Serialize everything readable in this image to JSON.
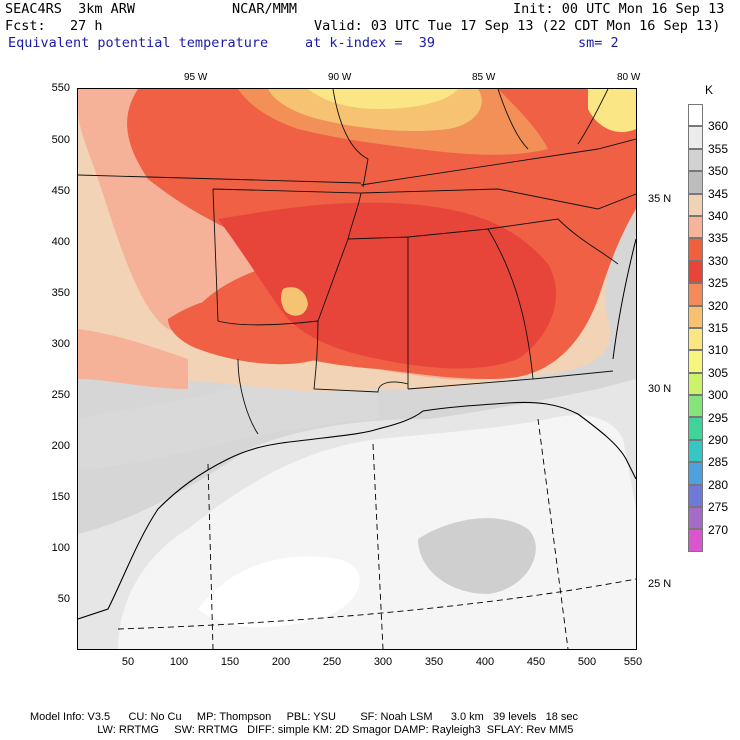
{
  "header": {
    "model": "SEAC4RS  3km ARW",
    "org": "NCAR/MMM",
    "init": "Init: 00 UTC Mon 16 Sep 13",
    "fcst": "Fcst:   27 h",
    "valid": "Valid: 03 UTC Tue 17 Sep 13 (22 CDT Mon 16 Sep 13)",
    "field": "Equivalent potential temperature",
    "level": "at k-index =  39",
    "smooth": "sm= 2"
  },
  "map": {
    "lon_labels": [
      "95 W",
      "90 W",
      "85 W",
      "80 W"
    ],
    "lat_labels": [
      "35 N",
      "30 N",
      "25 N"
    ],
    "y_ticks": [
      "550",
      "500",
      "450",
      "400",
      "350",
      "300",
      "250",
      "200",
      "150",
      "100",
      "50"
    ],
    "x_ticks": [
      "50",
      "100",
      "150",
      "200",
      "250",
      "300",
      "350",
      "400",
      "450",
      "500",
      "550"
    ]
  },
  "colorbar": {
    "unit": "K",
    "labels": [
      "360",
      "355",
      "350",
      "345",
      "340",
      "335",
      "330",
      "325",
      "320",
      "315",
      "310",
      "305",
      "300",
      "295",
      "290",
      "285",
      "280",
      "275",
      "270"
    ],
    "colors": [
      "#ffffff",
      "#ececec",
      "#d2d2d2",
      "#bdbdbd",
      "#f1d2b4",
      "#f6b49a",
      "#f0603e",
      "#e84438",
      "#f38a57",
      "#f6c272",
      "#fbe684",
      "#f6f57d",
      "#cdf36a",
      "#86e57a",
      "#40d49a",
      "#36c6c4",
      "#4fa0df",
      "#7078d9",
      "#a56cc7",
      "#d956cf"
    ]
  },
  "footer": {
    "line1": "Model Info: V3.5      CU: No Cu     MP: Thompson     PBL: YSU        SF: Noah LSM      3.0 km   39 levels   18 sec",
    "line2": "                      LW: RRTMG     SW: RRTMG   DIFF: simple KM: 2D Smagor DAMP: Rayleigh3  SFLAY: Rev MM5"
  }
}
